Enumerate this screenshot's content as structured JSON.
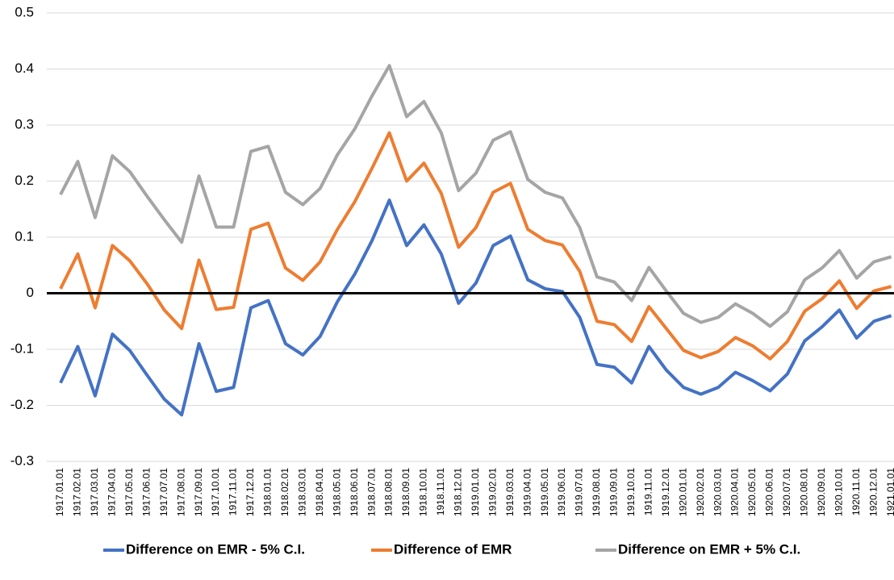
{
  "chart_data": {
    "type": "line",
    "categories": [
      "1917.01.01",
      "1917.02.01",
      "1917.03.01",
      "1917.04.01",
      "1917.05.01",
      "1917.06.01",
      "1917.07.01",
      "1917.08.01",
      "1917.09.01",
      "1917.10.01",
      "1917.11.01",
      "1917.12.01",
      "1918.01.01",
      "1918.02.01",
      "1918.03.01",
      "1918.04.01",
      "1918.05.01",
      "1918.06.01",
      "1918.07.01",
      "1918.08.01",
      "1918.09.01",
      "1918.10.01",
      "1918.11.01",
      "1918.12.01",
      "1919.01.01",
      "1919.02.01",
      "1919.03.01",
      "1919.04.01",
      "1919.05.01",
      "1919.06.01",
      "1919.07.01",
      "1919.08.01",
      "1919.09.01",
      "1919.10.01",
      "1919.11.01",
      "1919.12.01",
      "1920.01.01",
      "1920.02.01",
      "1920.03.01",
      "1920.04.01",
      "1920.05.01",
      "1920.06.01",
      "1920.07.01",
      "1920.08.01",
      "1920.09.01",
      "1920.10.01",
      "1920.11.01",
      "1920.12.01",
      "1921.01.01"
    ],
    "series": [
      {
        "name": "Difference on EMR - 5% C.I.",
        "color": "#4472c4",
        "values": [
          -0.16,
          -0.095,
          -0.183,
          -0.073,
          -0.102,
          -0.146,
          -0.189,
          -0.217,
          -0.09,
          -0.175,
          -0.168,
          -0.026,
          -0.013,
          -0.09,
          -0.11,
          -0.077,
          -0.015,
          0.034,
          0.094,
          0.166,
          0.085,
          0.122,
          0.07,
          -0.018,
          0.018,
          0.085,
          0.102,
          0.024,
          0.008,
          0.003,
          -0.043,
          -0.127,
          -0.132,
          -0.16,
          -0.095,
          -0.137,
          -0.168,
          -0.18,
          -0.168,
          -0.141,
          -0.156,
          -0.174,
          -0.144,
          -0.085,
          -0.06,
          -0.03,
          -0.08,
          -0.05,
          -0.04
        ]
      },
      {
        "name": "Difference of EMR",
        "color": "#ed7d31",
        "values": [
          0.008,
          0.07,
          -0.026,
          0.085,
          0.058,
          0.017,
          -0.03,
          -0.063,
          0.059,
          -0.029,
          -0.025,
          0.114,
          0.125,
          0.045,
          0.023,
          0.056,
          0.114,
          0.163,
          0.223,
          0.286,
          0.2,
          0.232,
          0.178,
          0.082,
          0.117,
          0.18,
          0.196,
          0.114,
          0.094,
          0.086,
          0.039,
          -0.05,
          -0.056,
          -0.086,
          -0.024,
          -0.063,
          -0.102,
          -0.115,
          -0.104,
          -0.079,
          -0.094,
          -0.117,
          -0.086,
          -0.032,
          -0.01,
          0.022,
          -0.027,
          0.004,
          0.012
        ]
      },
      {
        "name": "Difference on EMR + 5% C.I.",
        "color": "#a5a5a5",
        "values": [
          0.176,
          0.235,
          0.135,
          0.245,
          0.217,
          0.173,
          0.131,
          0.091,
          0.209,
          0.118,
          0.118,
          0.253,
          0.262,
          0.18,
          0.158,
          0.187,
          0.247,
          0.293,
          0.352,
          0.406,
          0.315,
          0.342,
          0.286,
          0.183,
          0.214,
          0.273,
          0.288,
          0.203,
          0.18,
          0.17,
          0.117,
          0.029,
          0.02,
          -0.013,
          0.046,
          0.004,
          -0.036,
          -0.052,
          -0.043,
          -0.019,
          -0.036,
          -0.059,
          -0.033,
          0.024,
          0.045,
          0.076,
          0.027,
          0.056,
          0.065
        ]
      }
    ],
    "ylim": [
      -0.3,
      0.5
    ],
    "yticks": [
      -0.3,
      -0.2,
      -0.1,
      0,
      0.1,
      0.2,
      0.3,
      0.4,
      0.5
    ],
    "grid": true,
    "legend": "bottom"
  }
}
